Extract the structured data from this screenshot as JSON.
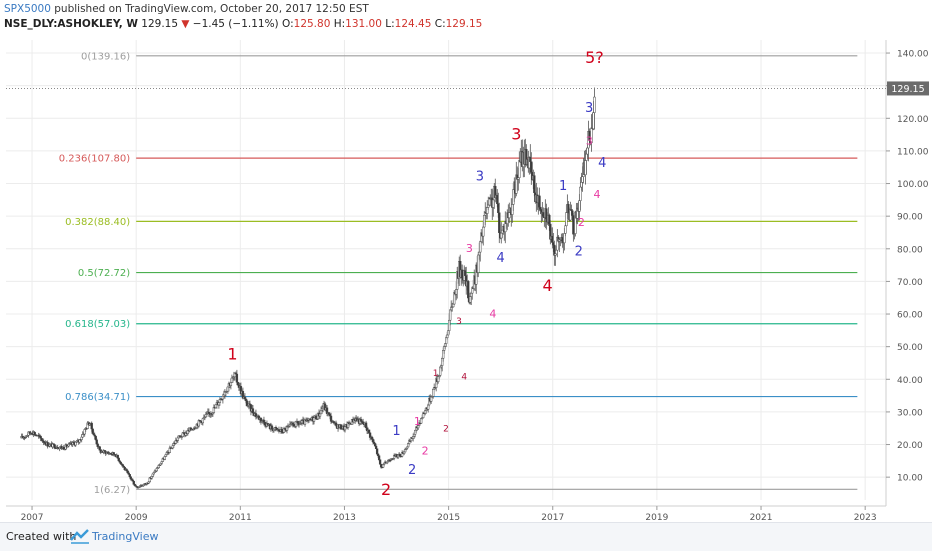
{
  "header": {
    "author": "SPX5000",
    "published_text": "published on TradingView.com, October 20, 2017 12:50 EST",
    "symbol": "NSE_DLY:ASHOKLEY, W",
    "last": "129.15",
    "change_arrow": "▼",
    "change": "−1.45 (−1.11%)",
    "open_label": "O:",
    "open": "125.80",
    "high_label": "H:",
    "high": "131.00",
    "low_label": "L:",
    "low": "124.45",
    "close_label": "C:",
    "close": "129.15"
  },
  "footer": {
    "created_with": "Created with",
    "brand": "TradingView"
  },
  "colors": {
    "up": "#4a4a4a",
    "down": "#4a4a4a",
    "grid": "#ececec",
    "price_tag_bg": "#6b6b6b",
    "wave_red": "#d0021b",
    "wave_blue": "#3b3bc4",
    "wave_pink": "#e83aa3",
    "wave_darkred": "#b0103a"
  },
  "chart_data": {
    "type": "candlestick",
    "interval": "weekly",
    "xlim": [
      2006.5,
      2023.4
    ],
    "ylim": [
      3,
      144
    ],
    "x_ticks": [
      2007,
      2009,
      2011,
      2013,
      2015,
      2017,
      2019,
      2021,
      2023
    ],
    "y_ticks": [
      10,
      20,
      30,
      40,
      50,
      60,
      70,
      80,
      90,
      100,
      110,
      120,
      130,
      140
    ],
    "last_price": 129.15,
    "price_path": [
      [
        2006.8,
        22
      ],
      [
        2007.0,
        24
      ],
      [
        2007.3,
        20
      ],
      [
        2007.6,
        19
      ],
      [
        2007.9,
        21
      ],
      [
        2008.1,
        27
      ],
      [
        2008.3,
        18
      ],
      [
        2008.6,
        17
      ],
      [
        2008.8,
        12
      ],
      [
        2009.0,
        7
      ],
      [
        2009.2,
        8
      ],
      [
        2009.5,
        15
      ],
      [
        2009.8,
        22
      ],
      [
        2010.0,
        24
      ],
      [
        2010.3,
        28
      ],
      [
        2010.5,
        31
      ],
      [
        2010.8,
        39
      ],
      [
        2010.9,
        41
      ],
      [
        2011.1,
        33
      ],
      [
        2011.3,
        29
      ],
      [
        2011.6,
        25
      ],
      [
        2011.8,
        24
      ],
      [
        2012.0,
        26
      ],
      [
        2012.3,
        27
      ],
      [
        2012.5,
        29
      ],
      [
        2012.6,
        32
      ],
      [
        2012.8,
        26
      ],
      [
        2013.0,
        25
      ],
      [
        2013.2,
        28
      ],
      [
        2013.4,
        26
      ],
      [
        2013.6,
        19
      ],
      [
        2013.7,
        13
      ],
      [
        2013.9,
        16
      ],
      [
        2014.1,
        17
      ],
      [
        2014.3,
        22
      ],
      [
        2014.5,
        29
      ],
      [
        2014.6,
        32
      ],
      [
        2014.8,
        41
      ],
      [
        2014.9,
        48
      ],
      [
        2015.0,
        57
      ],
      [
        2015.2,
        74
      ],
      [
        2015.3,
        72
      ],
      [
        2015.4,
        65
      ],
      [
        2015.5,
        70
      ],
      [
        2015.7,
        90
      ],
      [
        2015.9,
        97
      ],
      [
        2016.0,
        84
      ],
      [
        2016.2,
        93
      ],
      [
        2016.4,
        108
      ],
      [
        2016.5,
        109
      ],
      [
        2016.7,
        95
      ],
      [
        2016.9,
        91
      ],
      [
        2017.0,
        79
      ],
      [
        2017.2,
        84
      ],
      [
        2017.3,
        93
      ],
      [
        2017.4,
        86
      ],
      [
        2017.55,
        99
      ],
      [
        2017.65,
        110
      ],
      [
        2017.75,
        118
      ],
      [
        2017.8,
        129.15
      ]
    ],
    "fib_levels": [
      {
        "ratio": 0,
        "value": 139.16,
        "label": "0(139.16)",
        "color": "#9e9e9e"
      },
      {
        "ratio": 0.236,
        "value": 107.8,
        "label": "0.236(107.80)",
        "color": "#d65a5a"
      },
      {
        "ratio": 0.382,
        "value": 88.4,
        "label": "0.382(88.40)",
        "color": "#9bbd23"
      },
      {
        "ratio": 0.5,
        "value": 72.72,
        "label": "0.5(72.72)",
        "color": "#4caf50"
      },
      {
        "ratio": 0.618,
        "value": 57.03,
        "label": "0.618(57.03)",
        "color": "#26b68c"
      },
      {
        "ratio": 0.786,
        "value": 34.71,
        "label": "0.786(34.71)",
        "color": "#3b8fc7"
      },
      {
        "ratio": 1,
        "value": 6.27,
        "label": "1(6.27)",
        "color": "#9e9e9e"
      }
    ],
    "wave_labels": [
      {
        "text": "1",
        "x": 2010.85,
        "y": 46,
        "color": "#d0021b",
        "size": 16
      },
      {
        "text": "2",
        "x": 2013.8,
        "y": 4.5,
        "color": "#d0021b",
        "size": 16
      },
      {
        "text": "3",
        "x": 2016.3,
        "y": 113.5,
        "color": "#d0021b",
        "size": 16
      },
      {
        "text": "4",
        "x": 2016.9,
        "y": 67,
        "color": "#d0021b",
        "size": 16
      },
      {
        "text": "5?",
        "x": 2017.8,
        "y": 137,
        "color": "#d0021b",
        "size": 16
      },
      {
        "text": "1",
        "x": 2014.0,
        "y": 23,
        "color": "#3b3bc4",
        "size": 13
      },
      {
        "text": "2",
        "x": 2014.3,
        "y": 11,
        "color": "#3b3bc4",
        "size": 13
      },
      {
        "text": "3",
        "x": 2015.6,
        "y": 101,
        "color": "#3b3bc4",
        "size": 13
      },
      {
        "text": "4",
        "x": 2016.0,
        "y": 76,
        "color": "#3b3bc4",
        "size": 13
      },
      {
        "text": "1",
        "x": 2017.2,
        "y": 98,
        "color": "#3b3bc4",
        "size": 13
      },
      {
        "text": "2",
        "x": 2017.5,
        "y": 78,
        "color": "#3b3bc4",
        "size": 13
      },
      {
        "text": "3",
        "x": 2017.7,
        "y": 122,
        "color": "#3b3bc4",
        "size": 13
      },
      {
        "text": "4",
        "x": 2017.95,
        "y": 105,
        "color": "#3b3bc4",
        "size": 13
      },
      {
        "text": "1",
        "x": 2014.4,
        "y": 26,
        "color": "#e83aa3",
        "size": 11
      },
      {
        "text": "2",
        "x": 2014.55,
        "y": 17,
        "color": "#e83aa3",
        "size": 11
      },
      {
        "text": "3",
        "x": 2015.4,
        "y": 79,
        "color": "#e83aa3",
        "size": 11
      },
      {
        "text": "4",
        "x": 2015.85,
        "y": 59,
        "color": "#e83aa3",
        "size": 11
      },
      {
        "text": "3",
        "x": 2017.7,
        "y": 112,
        "color": "#e83aa3",
        "size": 11
      },
      {
        "text": "4",
        "x": 2017.85,
        "y": 95.5,
        "color": "#e83aa3",
        "size": 11
      },
      {
        "text": "2",
        "x": 2017.55,
        "y": 87,
        "color": "#e83aa3",
        "size": 11
      },
      {
        "text": "1",
        "x": 2014.75,
        "y": 41,
        "color": "#b0103a",
        "size": 9
      },
      {
        "text": "2",
        "x": 2014.95,
        "y": 24,
        "color": "#b0103a",
        "size": 9
      },
      {
        "text": "3",
        "x": 2015.2,
        "y": 57,
        "color": "#b0103a",
        "size": 9
      },
      {
        "text": "4",
        "x": 2015.3,
        "y": 40,
        "color": "#b0103a",
        "size": 9
      }
    ]
  }
}
